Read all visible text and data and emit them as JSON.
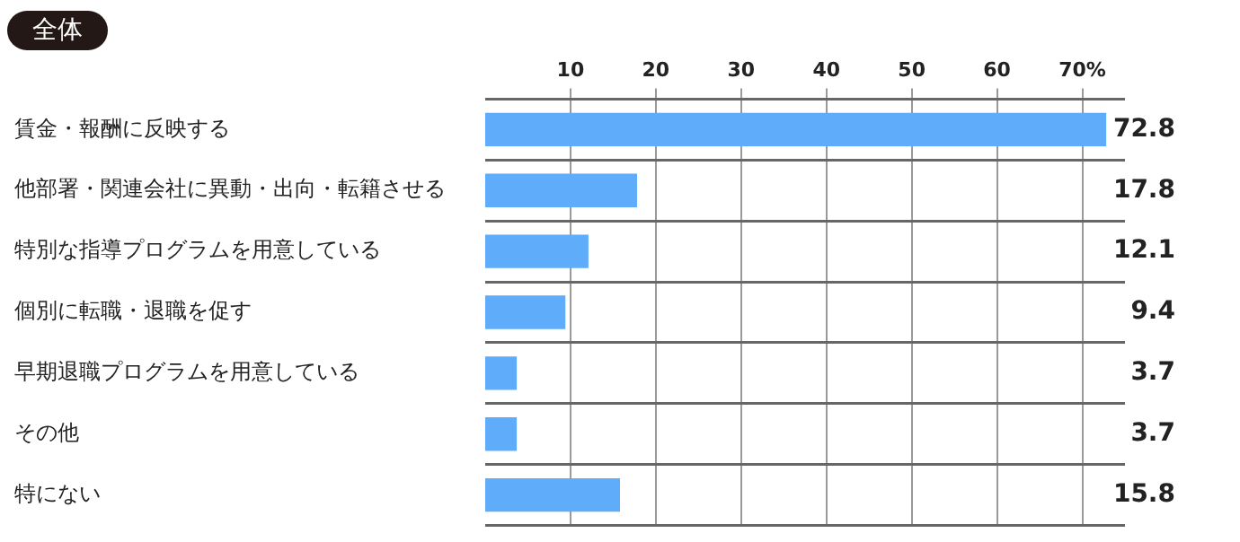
{
  "chart_data": {
    "type": "bar",
    "orientation": "horizontal",
    "title": "全体",
    "categories": [
      "賃金・報酬に反映する",
      "他部署・関連会社に異動・出向・転籍させる",
      "特別な指導プログラムを用意している",
      "個別に転職・退職を促す",
      "早期退職プログラムを用意している",
      "その他",
      "特にない"
    ],
    "values": [
      72.8,
      17.8,
      12.1,
      9.4,
      3.7,
      3.7,
      15.8
    ],
    "color": "#5eacfa",
    "xlim": [
      0,
      75
    ],
    "xticks": [
      10,
      20,
      30,
      40,
      50,
      {
        "value": 70,
        "label": "70%"
      },
      60
    ],
    "grid": true,
    "data_labels": true
  }
}
